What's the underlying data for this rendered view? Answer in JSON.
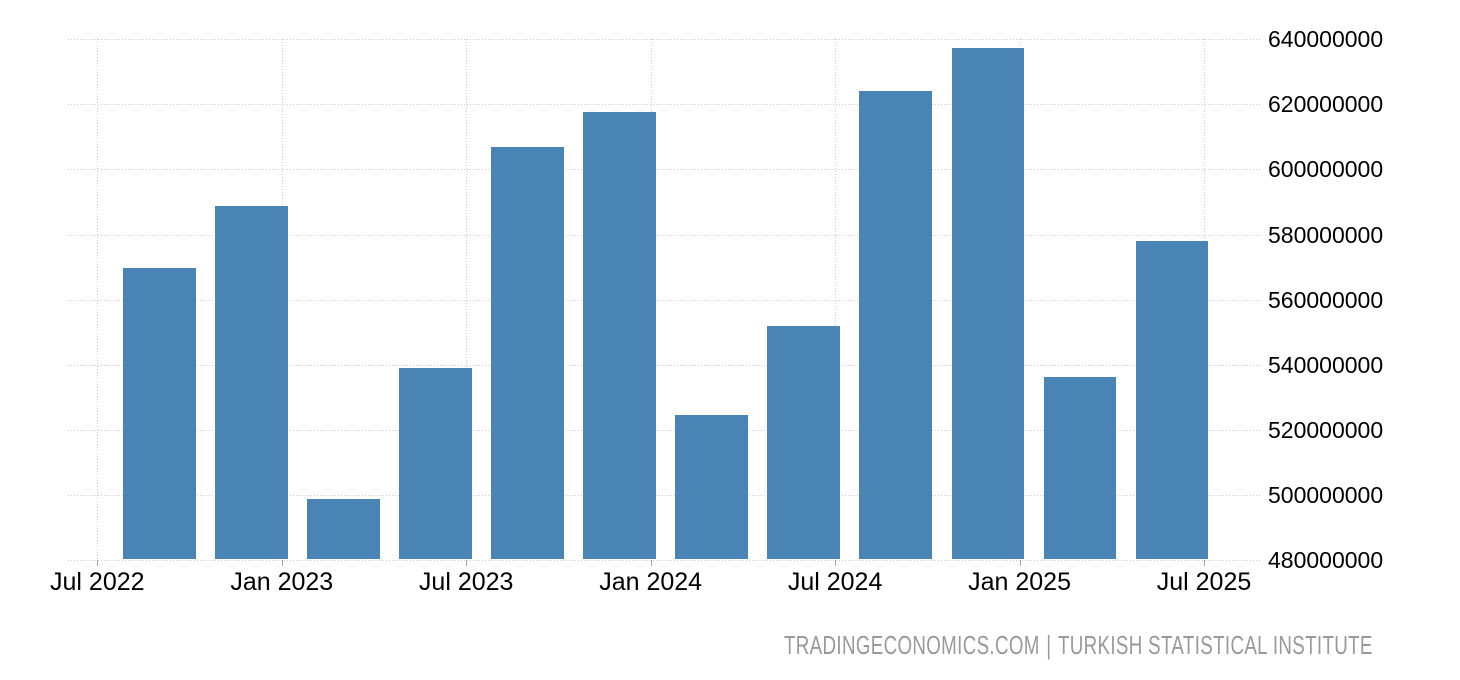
{
  "chart_data": {
    "type": "bar",
    "title": "",
    "xlabel": "",
    "ylabel": "",
    "categories": [
      "Q3 2022",
      "Q4 2022",
      "Q1 2023",
      "Q2 2023",
      "Q3 2023",
      "Q4 2023",
      "Q1 2024",
      "Q2 2024",
      "Q3 2024",
      "Q4 2024",
      "Q1 2025",
      "Q2 2025"
    ],
    "values": [
      569800000,
      588700000,
      498700000,
      539000000,
      606900000,
      617700000,
      524500000,
      551800000,
      624000000,
      637300000,
      536200000,
      578000000
    ],
    "x_tick_labels": [
      "Jul 2022",
      "Jan 2023",
      "Jul 2023",
      "Jan 2024",
      "Jul 2024",
      "Jan 2025",
      "Jul 2025"
    ],
    "y_ticks": [
      640000000,
      620000000,
      600000000,
      580000000,
      560000000,
      540000000,
      520000000,
      500000000,
      480000000
    ],
    "ylim": [
      480000000,
      640000000
    ],
    "grid": "dotted",
    "legend_position": "none",
    "y_axis_side": "right",
    "bar_color": "#4A84B4",
    "gridline_color": "#cccccc",
    "tick_color": "#a6a6a6",
    "axis_text_color": "#000000",
    "footer_text_color": "#999999"
  },
  "footer": {
    "left": "TRADINGECONOMICS.COM",
    "separator": "|",
    "right": "TURKISH STATISTICAL INSTITUTE"
  }
}
